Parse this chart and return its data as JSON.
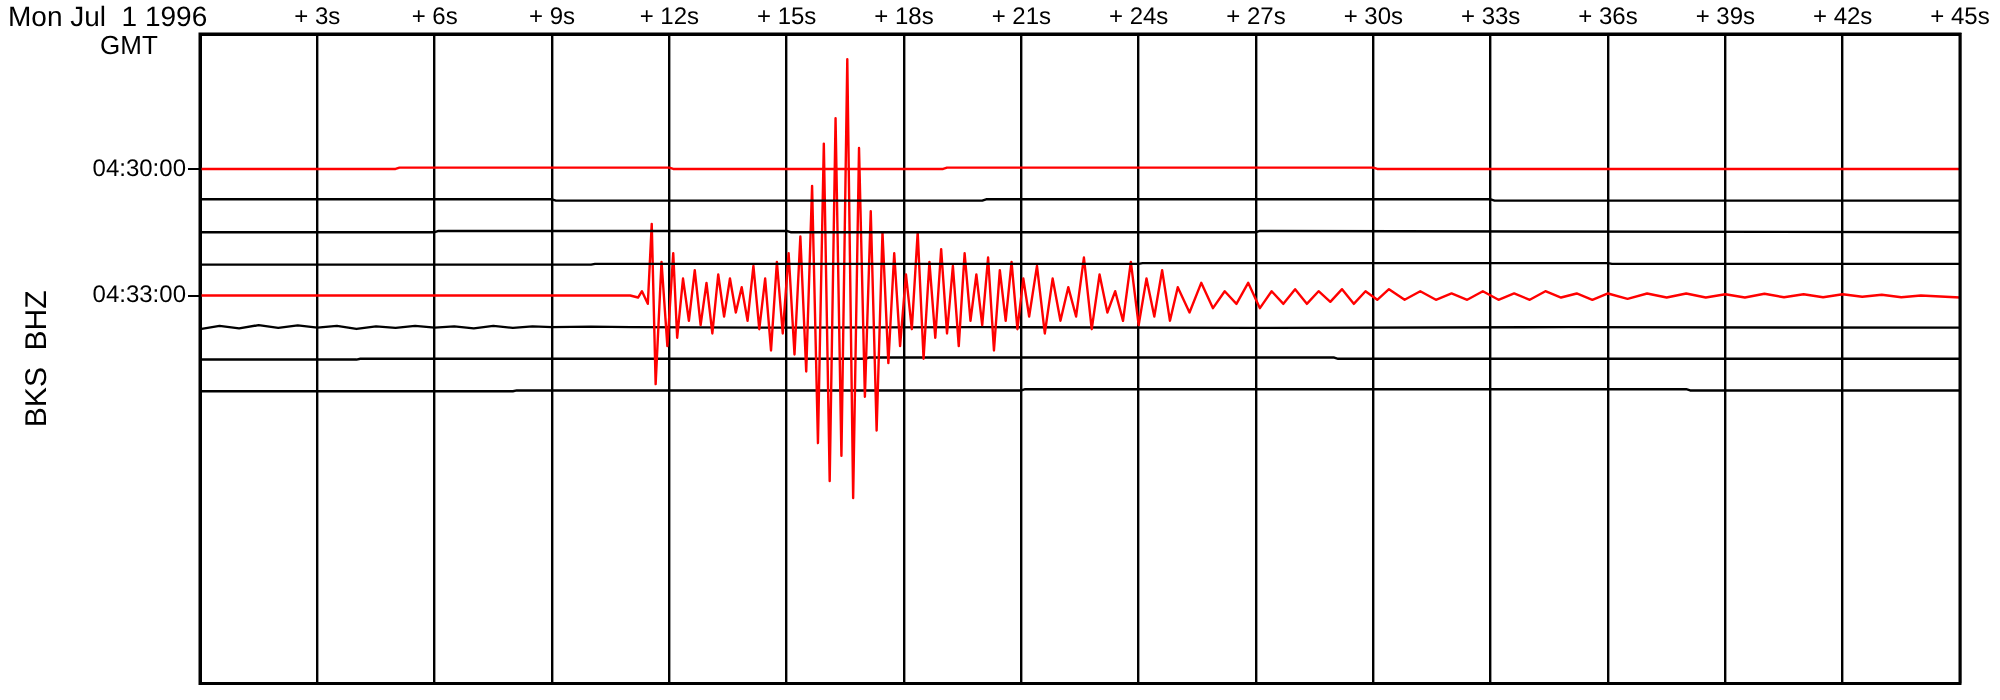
{
  "chart_data": {
    "type": "line",
    "title": "Mon Jul  1 1996",
    "subtitle": "GMT",
    "ylabel": "BKS  BHZ",
    "marker": "none",
    "grid": "x",
    "xlim": [
      0,
      45
    ],
    "xticks": [
      {
        "value": 3,
        "label": "+ 3s"
      },
      {
        "value": 6,
        "label": "+ 6s"
      },
      {
        "value": 9,
        "label": "+ 9s"
      },
      {
        "value": 12,
        "label": "+ 12s"
      },
      {
        "value": 15,
        "label": "+ 15s"
      },
      {
        "value": 18,
        "label": "+ 18s"
      },
      {
        "value": 21,
        "label": "+ 21s"
      },
      {
        "value": 24,
        "label": "+ 24s"
      },
      {
        "value": 27,
        "label": "+ 27s"
      },
      {
        "value": 30,
        "label": "+ 30s"
      },
      {
        "value": 33,
        "label": "+ 33s"
      },
      {
        "value": 36,
        "label": "+ 36s"
      },
      {
        "value": 39,
        "label": "+ 39s"
      },
      {
        "value": 42,
        "label": "+ 42s"
      },
      {
        "value": 45,
        "label": "+ 45s"
      }
    ],
    "ylim": [
      4.7033,
      4.4467
    ],
    "yticks": [
      {
        "value": 4.5,
        "label": "04:30:00"
      },
      {
        "value": 4.55,
        "label": "04:33:00"
      }
    ],
    "series": [
      {
        "color": "#ff0000",
        "x": [
          0,
          5,
          5.1,
          12,
          12.1,
          19,
          19.1,
          30,
          30.1,
          45
        ],
        "values": [
          4.5,
          4.5,
          4.4995,
          4.4995,
          4.5,
          4.5,
          4.4995,
          4.4995,
          4.5,
          4.5
        ]
      },
      {
        "color": "#000000",
        "x": [
          0,
          9,
          9.1,
          20,
          20.1,
          33,
          33.1,
          45
        ],
        "values": [
          4.512,
          4.512,
          4.5125,
          4.5125,
          4.512,
          4.512,
          4.5125,
          4.5125
        ]
      },
      {
        "color": "#000000",
        "x": [
          0,
          6,
          6.1,
          15,
          15.1,
          27,
          27.1,
          45
        ],
        "values": [
          4.525,
          4.525,
          4.5245,
          4.5245,
          4.525,
          4.525,
          4.5245,
          4.525
        ]
      },
      {
        "color": "#000000",
        "x": [
          0,
          10,
          10.1,
          24,
          24.1,
          36,
          36.1,
          45
        ],
        "values": [
          4.5378,
          4.5378,
          4.5375,
          4.5375,
          4.5372,
          4.5372,
          4.5375,
          4.5375
        ]
      },
      {
        "color": "#ff0000",
        "x": [
          0,
          11,
          11.2,
          11.3,
          11.45,
          11.55,
          11.65,
          11.8,
          11.95,
          12.1,
          12.2,
          12.35,
          12.5,
          12.65,
          12.8,
          12.95,
          13.1,
          13.25,
          13.4,
          13.55,
          13.7,
          13.85,
          14.0,
          14.15,
          14.3,
          14.45,
          14.6,
          14.75,
          14.9,
          15.05,
          15.2,
          15.35,
          15.5,
          15.65,
          15.8,
          15.95,
          16.1,
          16.25,
          16.4,
          16.55,
          16.7,
          16.85,
          17.0,
          17.15,
          17.3,
          17.45,
          17.6,
          17.75,
          17.9,
          18.05,
          18.2,
          18.35,
          18.5,
          18.65,
          18.8,
          18.95,
          19.1,
          19.25,
          19.4,
          19.55,
          19.7,
          19.85,
          20.0,
          20.15,
          20.3,
          20.45,
          20.6,
          20.75,
          20.9,
          21.05,
          21.2,
          21.4,
          21.6,
          21.8,
          22.0,
          22.2,
          22.4,
          22.6,
          22.8,
          23.0,
          23.2,
          23.4,
          23.6,
          23.8,
          24.0,
          24.2,
          24.4,
          24.6,
          24.8,
          25.0,
          25.3,
          25.6,
          25.9,
          26.2,
          26.5,
          26.8,
          27.1,
          27.4,
          27.7,
          28.0,
          28.3,
          28.6,
          28.9,
          29.2,
          29.5,
          29.8,
          30.1,
          30.4,
          30.8,
          31.2,
          31.6,
          32.0,
          32.4,
          32.8,
          33.2,
          33.6,
          34.0,
          34.4,
          34.8,
          35.2,
          35.6,
          36.0,
          36.5,
          37.0,
          37.5,
          38.0,
          38.5,
          39.0,
          39.5,
          40.0,
          40.5,
          41.0,
          41.5,
          42.0,
          42.5,
          43.0,
          43.5,
          44.0,
          45
        ],
        "values": [
          4.55,
          4.55,
          4.5508,
          4.5483,
          4.5533,
          4.5217,
          4.585,
          4.5367,
          4.57,
          4.5333,
          4.5667,
          4.5433,
          4.56,
          4.54,
          4.5617,
          4.545,
          4.565,
          4.5417,
          4.5583,
          4.5433,
          4.5567,
          4.5467,
          4.56,
          4.5383,
          4.5633,
          4.5433,
          4.5717,
          4.5367,
          4.565,
          4.5333,
          4.5733,
          4.5267,
          4.58,
          4.5067,
          4.6083,
          4.49,
          4.6233,
          4.48,
          4.6133,
          4.4567,
          4.63,
          4.4917,
          4.59,
          4.5167,
          4.6033,
          4.525,
          4.5767,
          4.5333,
          4.57,
          4.5417,
          4.5633,
          4.525,
          4.575,
          4.5367,
          4.5667,
          4.5317,
          4.565,
          4.5383,
          4.57,
          4.5333,
          4.56,
          4.5417,
          4.5617,
          4.535,
          4.5717,
          4.54,
          4.56,
          4.5367,
          4.5633,
          4.5433,
          4.5583,
          4.5383,
          4.565,
          4.5433,
          4.56,
          4.5467,
          4.5583,
          4.535,
          4.5633,
          4.5417,
          4.5567,
          4.5483,
          4.56,
          4.5367,
          4.5617,
          4.5433,
          4.5583,
          4.54,
          4.56,
          4.5467,
          4.5567,
          4.545,
          4.555,
          4.5483,
          4.5533,
          4.545,
          4.555,
          4.5483,
          4.5533,
          4.5475,
          4.5533,
          4.5483,
          4.5525,
          4.5475,
          4.5533,
          4.5483,
          4.5517,
          4.5475,
          4.5517,
          4.5483,
          4.5517,
          4.5492,
          4.5517,
          4.5483,
          4.5517,
          4.5492,
          4.5517,
          4.5483,
          4.5508,
          4.5492,
          4.5517,
          4.5492,
          4.5513,
          4.5492,
          4.5508,
          4.5492,
          4.5508,
          4.5495,
          4.5508,
          4.5493,
          4.5507,
          4.5495,
          4.5507,
          4.5495,
          4.5505,
          4.5497,
          4.5507,
          4.55,
          4.5508
        ]
      },
      {
        "color": "#000000",
        "x": [
          0,
          0.5,
          1,
          1.5,
          2,
          2.5,
          3,
          3.5,
          4,
          4.5,
          5,
          5.5,
          6,
          6.5,
          7,
          7.5,
          8,
          8.5,
          9,
          10,
          11,
          15,
          20,
          27,
          35,
          45
        ],
        "values": [
          4.5633,
          4.562,
          4.563,
          4.5617,
          4.5628,
          4.5618,
          4.5627,
          4.562,
          4.5632,
          4.5622,
          4.5628,
          4.562,
          4.5627,
          4.5622,
          4.563,
          4.562,
          4.5628,
          4.5622,
          4.5625,
          4.5623,
          4.5625,
          4.5627,
          4.5625,
          4.5628,
          4.5625,
          4.5627
        ]
      },
      {
        "color": "#000000",
        "x": [
          0,
          4,
          4.1,
          17,
          17.1,
          29,
          29.1,
          45
        ],
        "values": [
          4.5753,
          4.5753,
          4.575,
          4.575,
          4.5745,
          4.5745,
          4.575,
          4.575
        ]
      },
      {
        "color": "#000000",
        "x": [
          0,
          8,
          8.1,
          21,
          21.1,
          38,
          38.1,
          45
        ],
        "values": [
          4.5878,
          4.5878,
          4.5875,
          4.5875,
          4.587,
          4.587,
          4.5875,
          4.5875
        ]
      }
    ]
  }
}
